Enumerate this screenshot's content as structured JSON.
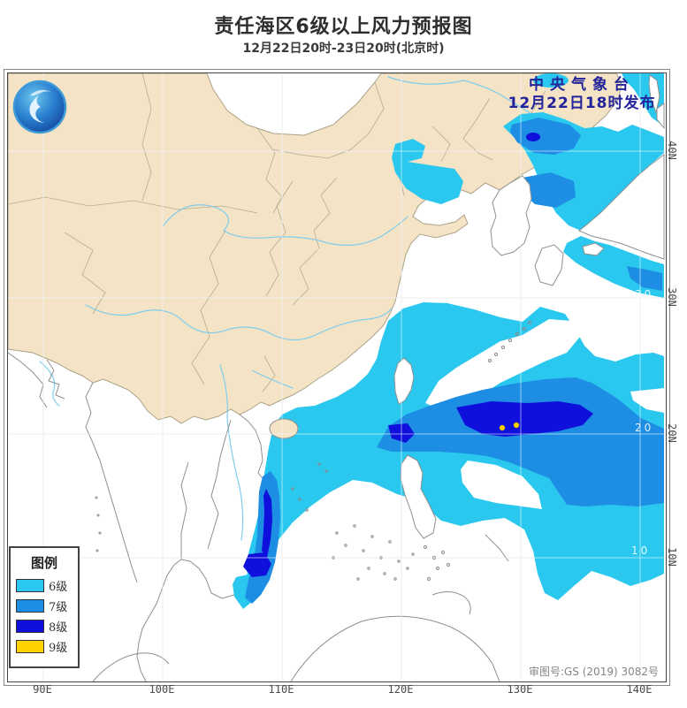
{
  "header": {
    "title": "责任海区6级以上风力预报图",
    "subtitle": "12月22日20时-23日20时(北京时)"
  },
  "map": {
    "agency": "中央气象台",
    "issued": "12月22日18时发布",
    "approval": "审图号:GS (2019) 3082号",
    "grid_labels": [
      "30",
      "20",
      "10"
    ]
  },
  "legend": {
    "title": "图例",
    "items": [
      {
        "label": "6级",
        "color": "#2ac8ee"
      },
      {
        "label": "7级",
        "color": "#1e8ee4"
      },
      {
        "label": "8级",
        "color": "#1010dc"
      },
      {
        "label": "9级",
        "color": "#ffd200"
      }
    ]
  },
  "axis": {
    "lon": [
      "90E",
      "100E",
      "110E",
      "120E",
      "130E",
      "140E"
    ],
    "lat": [
      "40N",
      "30N",
      "20N",
      "10N"
    ]
  },
  "colors": {
    "level6": "#2ac8ee",
    "level7": "#1e8ee4",
    "level8": "#1010dc",
    "level9": "#ffd200",
    "land": "#f4e3c4",
    "border": "#aba289",
    "coast": "#8f8f8f",
    "river": "#7fcdef",
    "issue_text": "#23239b"
  }
}
